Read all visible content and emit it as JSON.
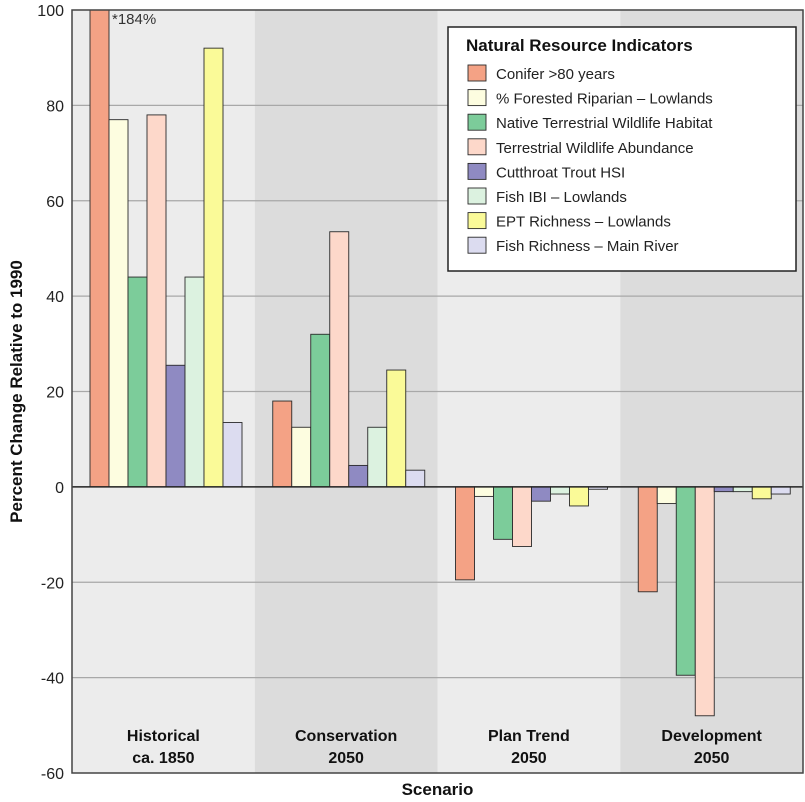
{
  "chart_data": {
    "type": "bar",
    "title": "",
    "xlabel": "Scenario",
    "ylabel": "Percent Change Relative to 1990",
    "ylim": [
      -60,
      100
    ],
    "yticks": [
      -60,
      -40,
      -20,
      0,
      20,
      40,
      60,
      80,
      100
    ],
    "grid": true,
    "legend_title": "Natural Resource Indicators",
    "legend_position": "top-right",
    "categories": [
      {
        "line1": "Historical",
        "line2": "ca. 1850"
      },
      {
        "line1": "Conservation",
        "line2": "2050"
      },
      {
        "line1": "Plan Trend",
        "line2": "2050"
      },
      {
        "line1": "Development",
        "line2": "2050"
      }
    ],
    "band_colors": [
      "#ececec",
      "#dcdcdc"
    ],
    "series": [
      {
        "name": "Conifer >80 years",
        "color": "#f4a285",
        "values": [
          100,
          18,
          -19.5,
          -22
        ]
      },
      {
        "name": "% Forested Riparian – Lowlands",
        "color": "#fdfde0",
        "values": [
          77,
          12.5,
          -2,
          -3.5
        ]
      },
      {
        "name": "Native Terrestrial Wildlife Habitat",
        "color": "#7ccc9a",
        "values": [
          44,
          32,
          -11,
          -39.5
        ]
      },
      {
        "name": "Terrestrial Wildlife Abundance",
        "color": "#fdd8ca",
        "values": [
          78,
          53.5,
          -12.5,
          -48
        ]
      },
      {
        "name": "Cutthroat Trout HSI",
        "color": "#8f8ac2",
        "values": [
          25.5,
          4.5,
          -3,
          -1
        ]
      },
      {
        "name": "Fish IBI – Lowlands",
        "color": "#dcf2e0",
        "values": [
          44,
          12.5,
          -1.5,
          -1
        ]
      },
      {
        "name": "EPT Richness – Lowlands",
        "color": "#fafa98",
        "values": [
          92,
          24.5,
          -4,
          -2.5
        ]
      },
      {
        "name": "Fish Richness – Main River",
        "color": "#dcdcf0",
        "values": [
          13.5,
          3.5,
          -0.5,
          -1.5
        ]
      }
    ],
    "annotation": "*184%"
  }
}
